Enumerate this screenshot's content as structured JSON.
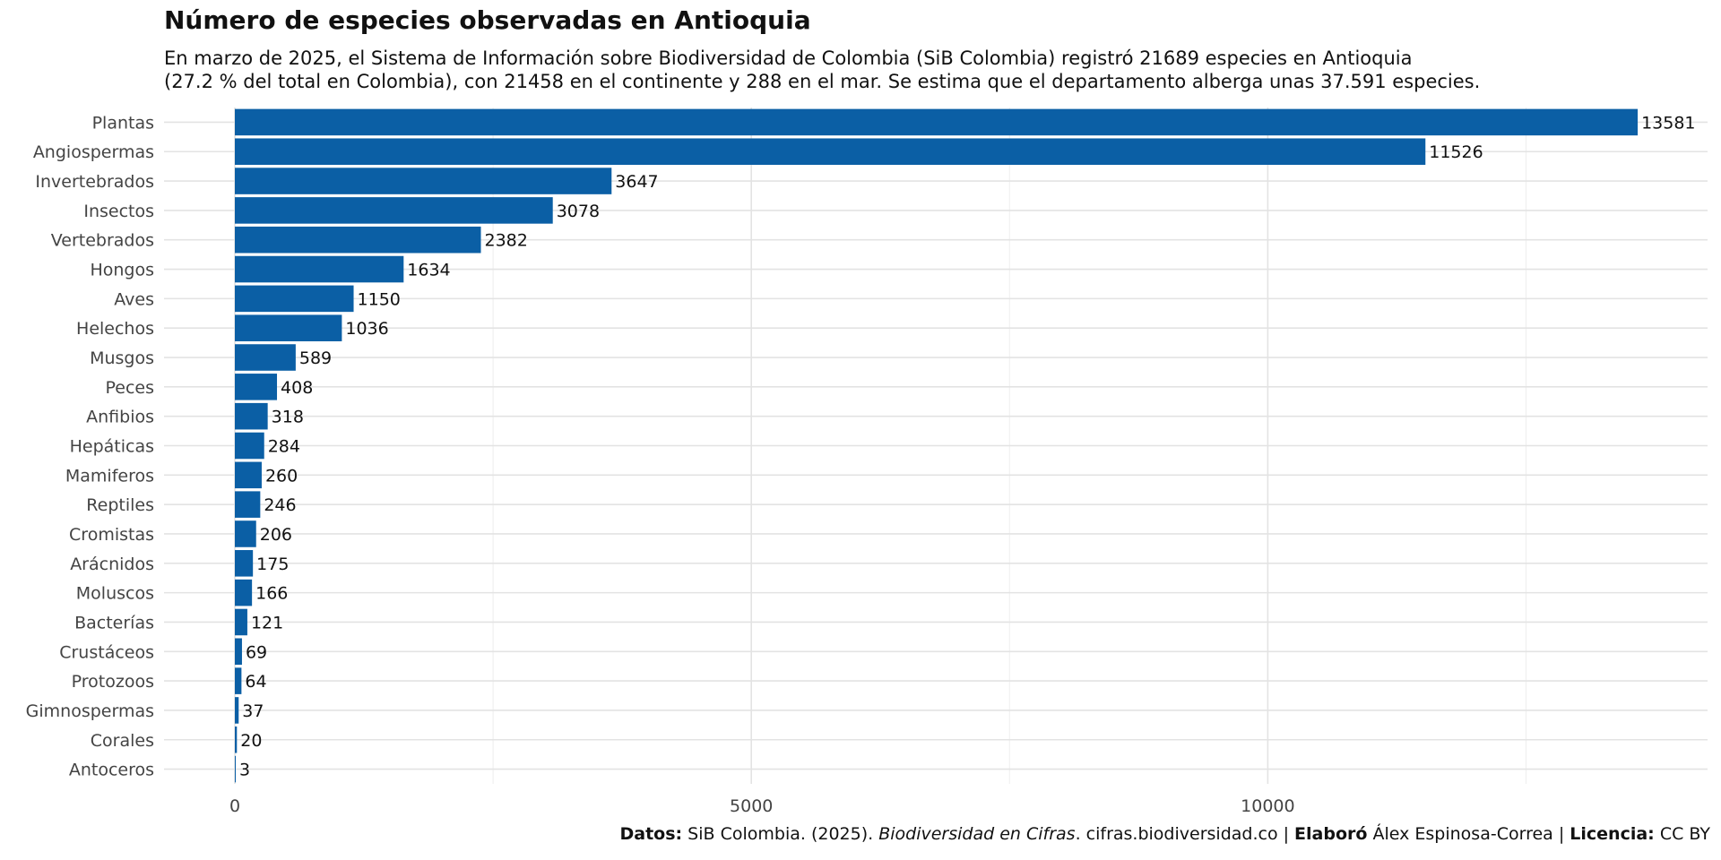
{
  "chart_data": {
    "type": "bar",
    "orientation": "horizontal",
    "title": "Número de especies observadas en Antioquia",
    "subtitle_lines": [
      "En marzo de 2025, el Sistema de Información sobre Biodiversidad de Colombia (SiB Colombia) registró 21689 especies en Antioquia",
      "(27.2 % del total en Colombia), con 21458 en el continente y 288 en el mar. Se estima que el departamento alberga unas 37.591 especies."
    ],
    "categories": [
      "Plantas",
      "Angiospermas",
      "Invertebrados",
      "Insectos",
      "Vertebrados",
      "Hongos",
      "Aves",
      "Helechos",
      "Musgos",
      "Peces",
      "Anfibios",
      "Hepáticas",
      "Mamiferos",
      "Reptiles",
      "Cromistas",
      "Arácnidos",
      "Moluscos",
      "Bacterías",
      "Crustáceos",
      "Protozoos",
      "Gimnospermas",
      "Corales",
      "Antoceros"
    ],
    "values": [
      13581,
      11526,
      3647,
      3078,
      2382,
      1634,
      1150,
      1036,
      589,
      408,
      318,
      284,
      260,
      246,
      206,
      175,
      166,
      121,
      69,
      64,
      37,
      20,
      3
    ],
    "xticks": [
      0,
      5000,
      10000
    ],
    "xlim": [
      -700,
      14500
    ],
    "grid": true,
    "bar_color": "#0b5fa5",
    "caption": {
      "datos_label": "Datos:",
      "datos_text": " SiB Colombia. (2025). ",
      "datos_italic": "Biodiversidad en Cifras",
      "datos_url": ". cifras.biodiversidad.co | ",
      "elaboro_label": "Elaboró",
      "elaboro_text": " Álex Espinosa-Correa | ",
      "licencia_label": "Licencia:",
      "licencia_text": " CC BY"
    }
  }
}
